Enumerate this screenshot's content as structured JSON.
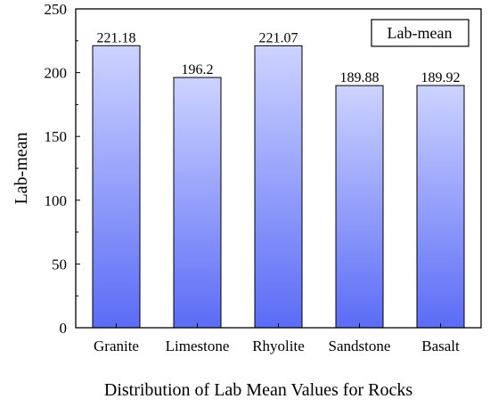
{
  "chart_data": {
    "type": "bar",
    "categories": [
      "Granite",
      "Limestone",
      "Rhyolite",
      "Sandstone",
      "Basalt"
    ],
    "values": [
      221.18,
      196.2,
      221.07,
      189.88,
      189.92
    ],
    "value_labels": [
      "221.18",
      "196.2",
      "221.07",
      "189.88",
      "189.92"
    ],
    "xlabel": "Distribution of Lab Mean Values for Rocks",
    "ylabel": "Lab-mean",
    "ylim": [
      0,
      250
    ],
    "yticks": [
      0,
      50,
      100,
      150,
      200,
      250
    ],
    "legend": {
      "label": "Lab-mean",
      "position": "top-right"
    },
    "grid": false,
    "colors": {
      "bar_top": "#cdd3ff",
      "bar_bottom": "#5b6cf6",
      "bar_stroke": "#000000"
    }
  }
}
